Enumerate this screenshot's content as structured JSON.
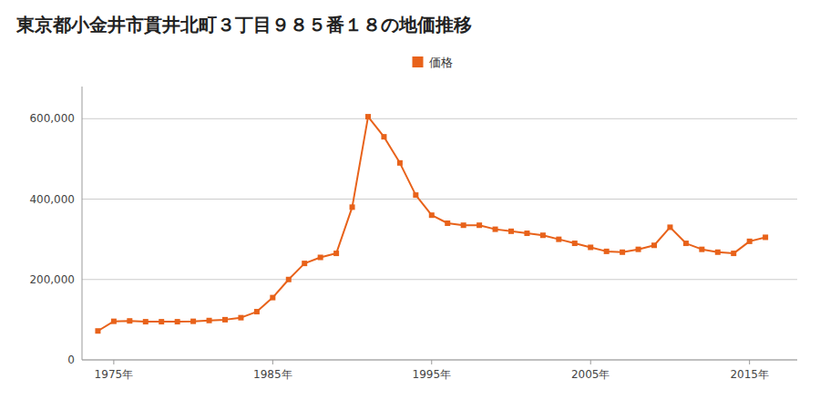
{
  "chart_data": {
    "type": "line",
    "title": "東京都小金井市貫井北町３丁目９８５番１８の地価推移",
    "x": [
      1974,
      1975,
      1976,
      1977,
      1978,
      1979,
      1980,
      1981,
      1982,
      1983,
      1984,
      1985,
      1986,
      1987,
      1988,
      1989,
      1990,
      1991,
      1992,
      1993,
      1994,
      1995,
      1996,
      1997,
      1998,
      1999,
      2000,
      2001,
      2002,
      2003,
      2004,
      2005,
      2006,
      2007,
      2008,
      2009,
      2010,
      2011,
      2012,
      2013,
      2014,
      2015,
      2016
    ],
    "series": [
      {
        "name": "価格",
        "color": "#e8621a",
        "marker": "square",
        "line_style": "solid",
        "values": [
          72000,
          96000,
          97000,
          95000,
          95000,
          95000,
          96000,
          98000,
          100000,
          105000,
          120000,
          155000,
          200000,
          240000,
          255000,
          265000,
          380000,
          605000,
          555000,
          490000,
          410000,
          360000,
          340000,
          335000,
          335000,
          325000,
          320000,
          315000,
          310000,
          300000,
          290000,
          280000,
          270000,
          268000,
          275000,
          285000,
          330000,
          290000,
          275000,
          268000,
          265000,
          295000,
          305000
        ]
      }
    ],
    "xlim": [
      1973,
      2018
    ],
    "xticks": [
      {
        "value": 1975,
        "label": "1975年"
      },
      {
        "value": 1985,
        "label": "1985年"
      },
      {
        "value": 1995,
        "label": "1995年"
      },
      {
        "value": 2005,
        "label": "2005年"
      },
      {
        "value": 2015,
        "label": "2015年"
      }
    ],
    "ylim": [
      0,
      680000
    ],
    "yticks": [
      0,
      {
        "value": 200000,
        "label": "200,000"
      },
      {
        "value": 400000,
        "label": "400,000"
      },
      {
        "value": 600000,
        "label": "600,000"
      }
    ],
    "grid": true,
    "legend": "top"
  }
}
